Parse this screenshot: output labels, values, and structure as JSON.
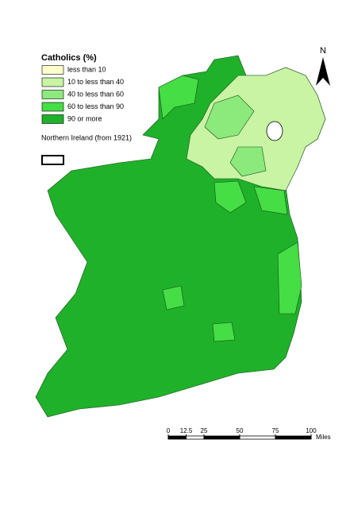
{
  "legend": {
    "title": "Catholics (%)",
    "items": [
      {
        "label": "less than 10",
        "color": "#ffffcc"
      },
      {
        "label": "10 to less than 40",
        "color": "#c8f4a4"
      },
      {
        "label": "40 to less than 60",
        "color": "#8ce97c"
      },
      {
        "label": "60 to less than 90",
        "color": "#45de45"
      },
      {
        "label": "90 or more",
        "color": "#1fb12a"
      }
    ],
    "boundary": "Northern Ireland (from 1921)"
  },
  "north_arrow": "N",
  "scale_bar": {
    "ticks": [
      0,
      12.5,
      25,
      50,
      75,
      100
    ],
    "unit": "Miles"
  }
}
